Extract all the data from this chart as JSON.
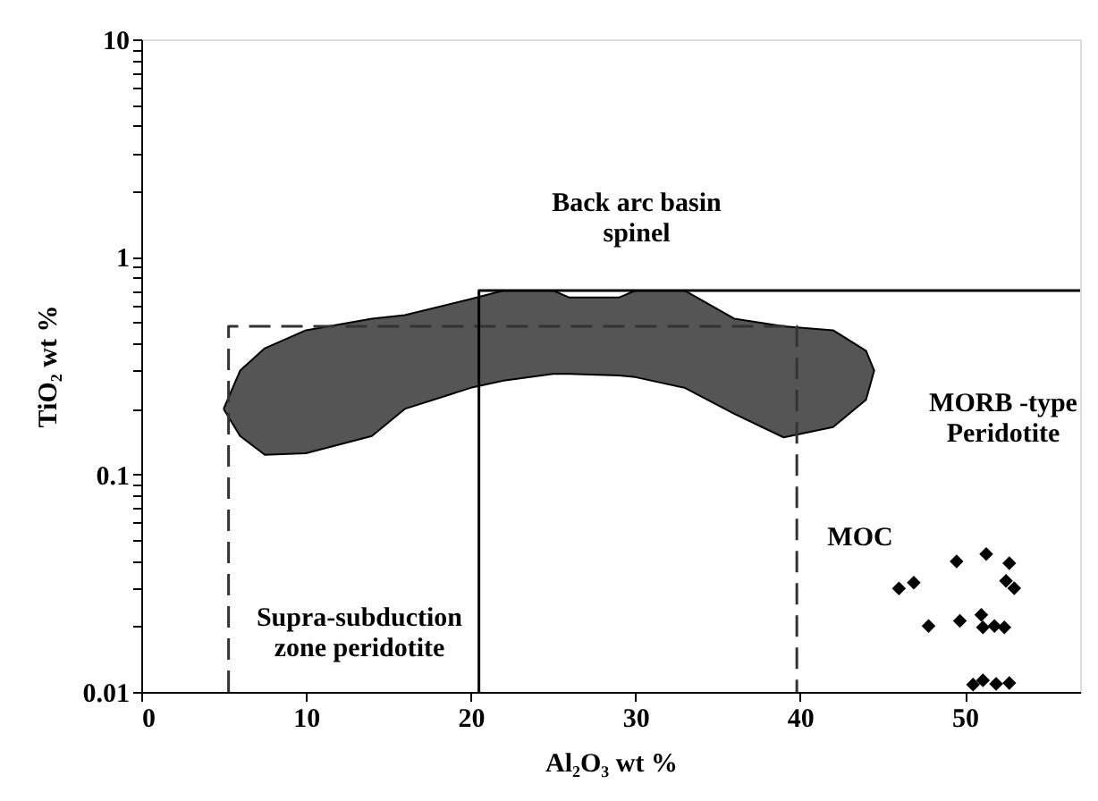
{
  "chart_data": {
    "type": "scatter",
    "xlabel": "Al₂O₃ wt %",
    "ylabel": "TiO₂ wt %",
    "xlim": [
      0,
      57
    ],
    "xticks": [
      0,
      10,
      20,
      30,
      40,
      50
    ],
    "ylim": [
      0.01,
      10
    ],
    "log": true,
    "grid": false,
    "legend": false,
    "yticks": [
      0.01,
      {
        "value": 0.02,
        "label": null
      },
      {
        "value": 0.03,
        "label": null
      },
      {
        "value": 0.04,
        "label": null
      },
      {
        "value": 0.05,
        "label": null
      },
      {
        "value": 0.06,
        "label": null
      },
      {
        "value": 0.07,
        "label": null
      },
      {
        "value": 0.08,
        "label": null
      },
      {
        "value": 0.09,
        "label": null
      },
      0.1,
      {
        "value": 0.2,
        "label": null
      },
      {
        "value": 0.3,
        "label": null
      },
      {
        "value": 0.4,
        "label": null
      },
      {
        "value": 0.5,
        "label": null
      },
      {
        "value": 0.6,
        "label": null
      },
      {
        "value": 0.7,
        "label": null
      },
      {
        "value": 0.8,
        "label": null
      },
      {
        "value": 0.9,
        "label": null
      },
      1,
      {
        "value": 2,
        "label": null
      },
      {
        "value": 3,
        "label": null
      },
      {
        "value": 4,
        "label": null
      },
      {
        "value": 5,
        "label": null
      },
      {
        "value": 6,
        "label": null
      },
      {
        "value": 7,
        "label": null
      },
      {
        "value": 8,
        "label": null
      },
      {
        "value": 9,
        "label": null
      },
      10
    ],
    "series": [
      {
        "type": "area",
        "color": "#555555",
        "x": [
          5.0,
          6.0,
          7.5,
          10,
          14,
          16,
          20,
          22,
          25,
          26,
          29,
          30,
          33,
          36,
          39,
          42,
          44,
          44.5,
          44,
          42,
          39,
          36,
          33,
          30,
          29,
          26,
          25,
          22,
          20,
          16,
          14,
          10,
          7.5,
          6.0,
          5.0
        ],
        "values": [
          0.2,
          0.3,
          0.38,
          0.46,
          0.52,
          0.54,
          0.64,
          0.7,
          0.7,
          0.65,
          0.65,
          0.7,
          0.7,
          0.52,
          0.48,
          0.46,
          0.37,
          0.3,
          0.22,
          0.165,
          0.148,
          0.19,
          0.25,
          0.28,
          0.285,
          0.29,
          0.29,
          0.27,
          0.25,
          0.2,
          0.15,
          0.125,
          0.123,
          0.15,
          0.2
        ]
      },
      {
        "type": "line",
        "color": "#333333",
        "line_style": "dashed",
        "x": [
          5.3,
          5.3,
          39.8,
          39.8
        ],
        "values": [
          0.01,
          0.48,
          0.48,
          0.01
        ]
      },
      {
        "type": "line",
        "color": "#000000",
        "line_style": "solid",
        "x": [
          20.5,
          20.5,
          57
        ],
        "values": [
          0.01,
          0.7,
          0.7
        ]
      },
      {
        "type": "scatter",
        "color": "#000000",
        "marker": "diamond",
        "x": [
          46.0,
          46.9,
          47.8,
          49.5,
          49.7,
          51.3,
          51.0,
          51.1,
          51.8,
          52.4,
          52.7,
          52.5,
          53.0,
          50.5,
          51.1,
          51.9,
          52.7
        ],
        "values": [
          0.0299,
          0.0318,
          0.0201,
          0.0398,
          0.0212,
          0.043,
          0.0226,
          0.0198,
          0.0201,
          0.0198,
          0.0391,
          0.0324,
          0.03,
          0.0108,
          0.0113,
          0.0109,
          0.011
        ]
      }
    ],
    "annotations": [
      "Back arc basin\nspinel",
      "MORB -type\nPeridotite",
      "Supra-subduction\nzone peridotite",
      "MOC"
    ]
  }
}
